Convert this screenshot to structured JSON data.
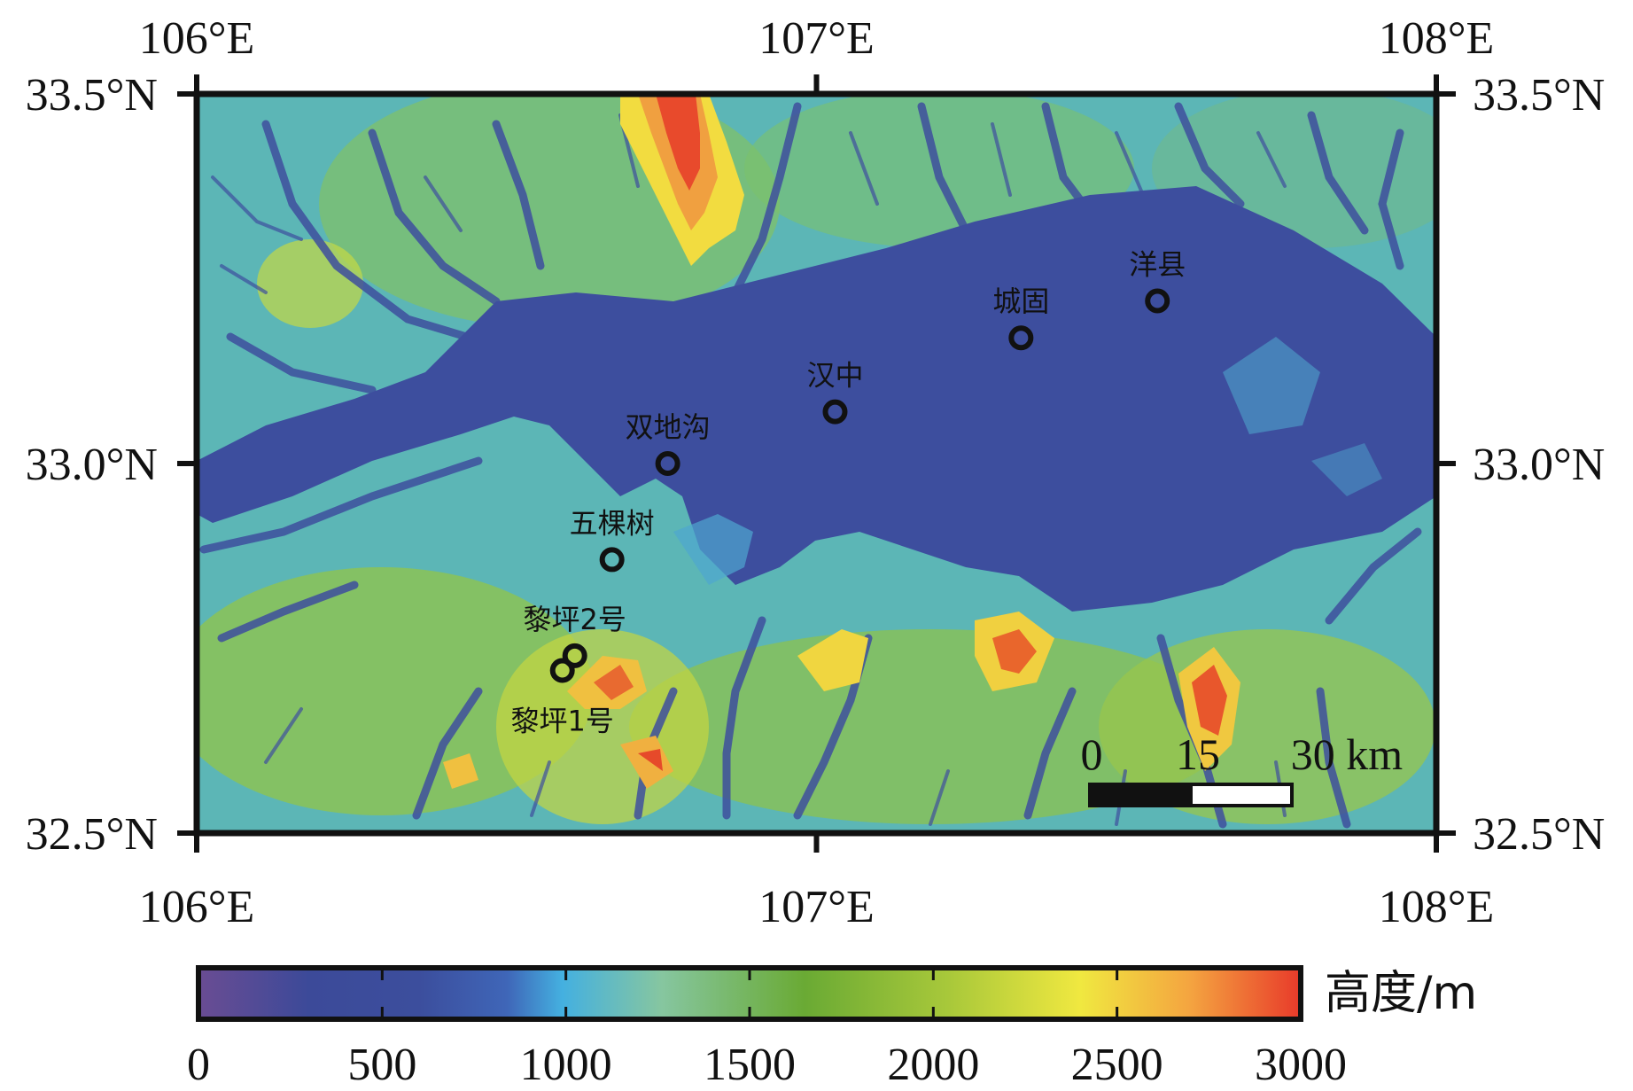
{
  "map": {
    "lon_range": [
      106,
      108
    ],
    "lat_range": [
      32.5,
      33.5
    ],
    "lon_ticks": [
      {
        "value": 106,
        "label": "106°E"
      },
      {
        "value": 107,
        "label": "107°E"
      },
      {
        "value": 108,
        "label": "108°E"
      }
    ],
    "lat_ticks": [
      {
        "value": 33.5,
        "label": "33.5°N"
      },
      {
        "value": 33.0,
        "label": "33.0°N"
      },
      {
        "value": 32.5,
        "label": "32.5°N"
      }
    ],
    "sites": [
      {
        "name": "洋县",
        "lon": 7.55,
        "lat": 33.22
      },
      {
        "name": "城固",
        "lon": 7.33,
        "lat": 33.17
      },
      {
        "name": "汉中",
        "lon": 7.03,
        "lat": 33.07
      },
      {
        "name": "双地沟",
        "lon": 6.76,
        "lat": 33.0
      },
      {
        "name": "五棵树",
        "lon": 6.67,
        "lat": 32.87
      },
      {
        "name": "黎坪2号",
        "lon": 6.61,
        "lat": 32.74
      },
      {
        "name": "黎坪1号",
        "lon": 6.59,
        "lat": 32.72
      }
    ],
    "scale_bar": {
      "labels": [
        "0",
        "15",
        "30 km"
      ]
    }
  },
  "colorbar": {
    "title": "高度/m",
    "range": [
      0,
      3000
    ],
    "ticks": [
      "0",
      "500",
      "1000",
      "1500",
      "2000",
      "2500",
      "3000"
    ],
    "colors": [
      "#6a4c93",
      "#3c4a99",
      "#3f66b8",
      "#44b0e0",
      "#86c6a0",
      "#7cb84a",
      "#6aaa34",
      "#a8c83a",
      "#f0e840",
      "#f4a440",
      "#e83a2a"
    ]
  }
}
